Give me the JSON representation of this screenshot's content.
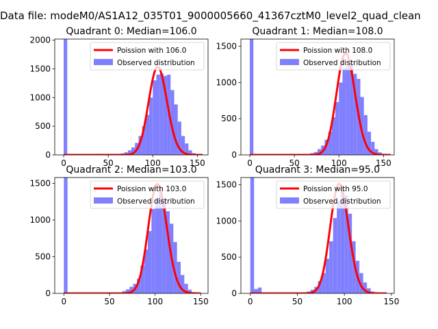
{
  "figure": {
    "title": "Data file: modeM0/AS1A12_035T01_9000005660_41367cztM0_level2_quad_clean"
  },
  "chart_data": [
    {
      "type": "bar",
      "title": "Quadrant 0: Median=106.0",
      "median": 106.0,
      "xlim": [
        -10,
        162
      ],
      "ylim": [
        0,
        2020
      ],
      "xticks": [
        0,
        50,
        100,
        150
      ],
      "yticks": [
        0,
        500,
        1000,
        1500,
        2000
      ],
      "grid": false,
      "legend_placement": "upper-right",
      "series": [
        {
          "name": "Poission with 106.0",
          "kind": "line",
          "color": "#ff0000",
          "mean": 106.0,
          "x_range": [
            0,
            156
          ]
        },
        {
          "name": "Observed distribution",
          "kind": "histogram",
          "color": "#8080ff",
          "bin_width": 4,
          "bins": [
            {
              "x": 0,
              "y": 2020
            },
            {
              "x": 60,
              "y": 10
            },
            {
              "x": 64,
              "y": 25
            },
            {
              "x": 68,
              "y": 45
            },
            {
              "x": 72,
              "y": 80
            },
            {
              "x": 76,
              "y": 130
            },
            {
              "x": 80,
              "y": 210
            },
            {
              "x": 84,
              "y": 330
            },
            {
              "x": 88,
              "y": 500
            },
            {
              "x": 92,
              "y": 700
            },
            {
              "x": 96,
              "y": 1000
            },
            {
              "x": 100,
              "y": 1300
            },
            {
              "x": 104,
              "y": 1400
            },
            {
              "x": 108,
              "y": 1420
            },
            {
              "x": 112,
              "y": 1380
            },
            {
              "x": 116,
              "y": 1400
            },
            {
              "x": 120,
              "y": 1130
            },
            {
              "x": 124,
              "y": 880
            },
            {
              "x": 128,
              "y": 580
            },
            {
              "x": 132,
              "y": 330
            },
            {
              "x": 136,
              "y": 200
            },
            {
              "x": 140,
              "y": 80
            },
            {
              "x": 144,
              "y": 30
            },
            {
              "x": 148,
              "y": 10
            }
          ]
        }
      ]
    },
    {
      "type": "bar",
      "title": "Quadrant 1: Median=108.0",
      "median": 108.0,
      "xlim": [
        -10,
        162
      ],
      "ylim": [
        0,
        1600
      ],
      "xticks": [
        0,
        50,
        100,
        150
      ],
      "yticks": [
        0,
        500,
        1000,
        1500
      ],
      "grid": false,
      "legend_placement": "upper-right",
      "series": [
        {
          "name": "Poission with 108.0",
          "kind": "line",
          "color": "#ff0000",
          "mean": 108.0,
          "x_range": [
            0,
            158
          ]
        },
        {
          "name": "Observed distribution",
          "kind": "histogram",
          "color": "#8080ff",
          "bin_width": 4,
          "bins": [
            {
              "x": 0,
              "y": 1600
            },
            {
              "x": 64,
              "y": 12
            },
            {
              "x": 68,
              "y": 25
            },
            {
              "x": 72,
              "y": 40
            },
            {
              "x": 76,
              "y": 80
            },
            {
              "x": 80,
              "y": 130
            },
            {
              "x": 84,
              "y": 210
            },
            {
              "x": 88,
              "y": 320
            },
            {
              "x": 92,
              "y": 520
            },
            {
              "x": 96,
              "y": 730
            },
            {
              "x": 100,
              "y": 1000
            },
            {
              "x": 104,
              "y": 1200
            },
            {
              "x": 108,
              "y": 1230
            },
            {
              "x": 112,
              "y": 1300
            },
            {
              "x": 116,
              "y": 1120
            },
            {
              "x": 120,
              "y": 1050
            },
            {
              "x": 124,
              "y": 800
            },
            {
              "x": 128,
              "y": 550
            },
            {
              "x": 132,
              "y": 320
            },
            {
              "x": 136,
              "y": 180
            },
            {
              "x": 140,
              "y": 80
            },
            {
              "x": 144,
              "y": 35
            },
            {
              "x": 148,
              "y": 10
            }
          ]
        }
      ]
    },
    {
      "type": "bar",
      "title": "Quadrant 2: Median=103.0",
      "median": 103.0,
      "xlim": [
        -10,
        158
      ],
      "ylim": [
        0,
        1580
      ],
      "xticks": [
        0,
        50,
        100,
        150
      ],
      "yticks": [
        0,
        500,
        1000,
        1500
      ],
      "grid": false,
      "legend_placement": "upper-right",
      "series": [
        {
          "name": "Poission with 103.0",
          "kind": "line",
          "color": "#ff0000",
          "mean": 103.0,
          "x_range": [
            0,
            150
          ]
        },
        {
          "name": "Observed distribution",
          "kind": "histogram",
          "color": "#8080ff",
          "bin_width": 4,
          "bins": [
            {
              "x": 0,
              "y": 1580
            },
            {
              "x": 60,
              "y": 10
            },
            {
              "x": 64,
              "y": 30
            },
            {
              "x": 68,
              "y": 55
            },
            {
              "x": 72,
              "y": 90
            },
            {
              "x": 76,
              "y": 130
            },
            {
              "x": 80,
              "y": 200
            },
            {
              "x": 84,
              "y": 380
            },
            {
              "x": 88,
              "y": 600
            },
            {
              "x": 92,
              "y": 850
            },
            {
              "x": 96,
              "y": 1150
            },
            {
              "x": 100,
              "y": 1300
            },
            {
              "x": 104,
              "y": 1380
            },
            {
              "x": 108,
              "y": 1300
            },
            {
              "x": 112,
              "y": 1120
            },
            {
              "x": 116,
              "y": 950
            },
            {
              "x": 120,
              "y": 700
            },
            {
              "x": 124,
              "y": 430
            },
            {
              "x": 128,
              "y": 250
            },
            {
              "x": 132,
              "y": 130
            },
            {
              "x": 136,
              "y": 50
            },
            {
              "x": 140,
              "y": 15
            }
          ]
        }
      ]
    },
    {
      "type": "bar",
      "title": "Quadrant 3: Median=95.0",
      "median": 95.0,
      "xlim": [
        -10,
        153
      ],
      "ylim": [
        0,
        1600
      ],
      "xticks": [
        0,
        50,
        100,
        150
      ],
      "yticks": [
        0,
        500,
        1000,
        1500
      ],
      "grid": false,
      "legend_placement": "upper-right",
      "series": [
        {
          "name": "Poission with 95.0",
          "kind": "line",
          "color": "#ff0000",
          "mean": 95.0,
          "x_range": [
            0,
            145
          ]
        },
        {
          "name": "Observed distribution",
          "kind": "histogram",
          "color": "#8080ff",
          "bin_width": 4,
          "bins": [
            {
              "x": 0,
              "y": 1600
            },
            {
              "x": 4,
              "y": 60
            },
            {
              "x": 8,
              "y": 80
            },
            {
              "x": 56,
              "y": 10
            },
            {
              "x": 60,
              "y": 25
            },
            {
              "x": 64,
              "y": 50
            },
            {
              "x": 68,
              "y": 90
            },
            {
              "x": 72,
              "y": 170
            },
            {
              "x": 76,
              "y": 280
            },
            {
              "x": 80,
              "y": 480
            },
            {
              "x": 84,
              "y": 720
            },
            {
              "x": 88,
              "y": 1040
            },
            {
              "x": 92,
              "y": 1270
            },
            {
              "x": 96,
              "y": 1400
            },
            {
              "x": 100,
              "y": 1350
            },
            {
              "x": 104,
              "y": 1100
            },
            {
              "x": 108,
              "y": 720
            },
            {
              "x": 112,
              "y": 450
            },
            {
              "x": 116,
              "y": 280
            },
            {
              "x": 120,
              "y": 150
            },
            {
              "x": 124,
              "y": 70
            },
            {
              "x": 128,
              "y": 25
            },
            {
              "x": 132,
              "y": 8
            }
          ]
        }
      ]
    }
  ]
}
